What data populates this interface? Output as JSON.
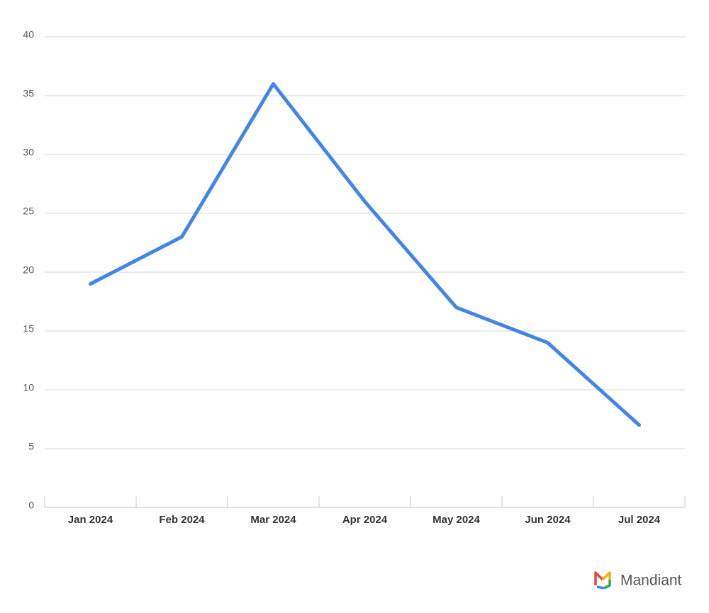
{
  "chart_data": {
    "type": "line",
    "categories": [
      "Jan 2024",
      "Feb 2024",
      "Mar 2024",
      "Apr 2024",
      "May 2024",
      "Jun 2024",
      "Jul 2024"
    ],
    "series": [
      {
        "color": "#4285e8",
        "values": [
          19,
          23,
          36,
          26,
          17,
          14,
          7
        ]
      }
    ],
    "ylim": [
      0,
      40
    ],
    "yticks": [
      0,
      5,
      10,
      15,
      20,
      25,
      30,
      35,
      40
    ],
    "grid": true
  },
  "logo": {
    "text": "Mandiant"
  }
}
